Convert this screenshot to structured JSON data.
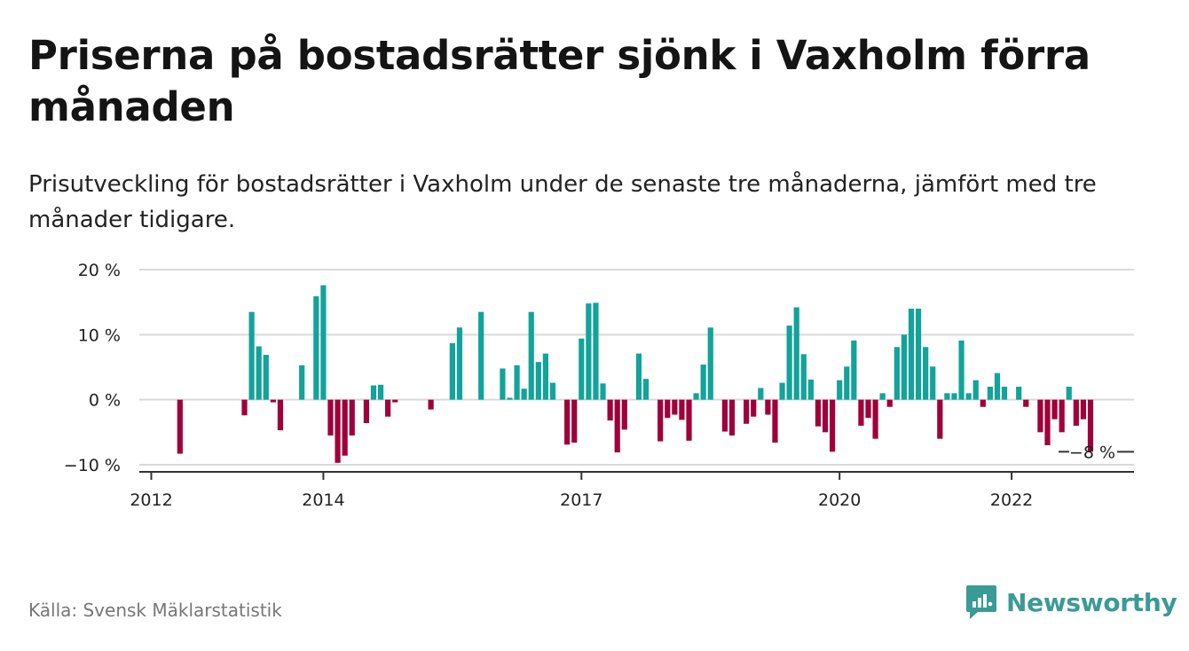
{
  "header": {
    "title": "Priserna på bostadsrätter sjönk i Vaxholm förra månaden",
    "subtitle": "Prisutveckling för bostadsrätter i Vaxholm under de senaste tre månaderna, jämfört med tre månader tidigare."
  },
  "footer": {
    "source": "Källa: Svensk Mäklarstatistik",
    "brand": "Newsworthy"
  },
  "colors": {
    "positive": "#12a39a",
    "negative": "#a0003a",
    "grid": "#d9d9d9",
    "axis": "#333333",
    "brand": "#3a9a96"
  },
  "chart_data": {
    "type": "bar",
    "title": "Priserna på bostadsrätter sjönk i Vaxholm förra månaden",
    "subtitle": "Prisutveckling för bostadsrätter i Vaxholm under de senaste tre månaderna, jämfört med tre månader tidigare.",
    "xlabel": "",
    "ylabel": "",
    "x_start": "2012-01",
    "x_end": "2022-12",
    "ylim": [
      -10,
      20
    ],
    "y_ticks": [
      {
        "value": 20,
        "label": "20 %"
      },
      {
        "value": 10,
        "label": "10 %"
      },
      {
        "value": 0,
        "label": "0 %"
      },
      {
        "value": -10,
        "label": "−10 %"
      }
    ],
    "x_ticks": [
      {
        "date": "2012-01",
        "label": "2012"
      },
      {
        "date": "2014-01",
        "label": "2014"
      },
      {
        "date": "2017-01",
        "label": "2017"
      },
      {
        "date": "2020-01",
        "label": "2020"
      },
      {
        "date": "2022-01",
        "label": "2022"
      }
    ],
    "grid": true,
    "last_value_label": "−8 %",
    "values": [
      {
        "date": "2012-05",
        "value": -8.3
      },
      {
        "date": "2013-02",
        "value": -2.4
      },
      {
        "date": "2013-03",
        "value": 13.5
      },
      {
        "date": "2013-04",
        "value": 8.2
      },
      {
        "date": "2013-05",
        "value": 6.9
      },
      {
        "date": "2013-06",
        "value": -0.4
      },
      {
        "date": "2013-07",
        "value": -4.7
      },
      {
        "date": "2013-10",
        "value": 5.3
      },
      {
        "date": "2013-12",
        "value": 15.9
      },
      {
        "date": "2014-01",
        "value": 17.6
      },
      {
        "date": "2014-02",
        "value": -5.5
      },
      {
        "date": "2014-03",
        "value": -9.7
      },
      {
        "date": "2014-04",
        "value": -8.6
      },
      {
        "date": "2014-05",
        "value": -5.5
      },
      {
        "date": "2014-07",
        "value": -3.6
      },
      {
        "date": "2014-08",
        "value": 2.2
      },
      {
        "date": "2014-09",
        "value": 2.3
      },
      {
        "date": "2014-10",
        "value": -2.6
      },
      {
        "date": "2014-11",
        "value": -0.4
      },
      {
        "date": "2015-04",
        "value": -1.5
      },
      {
        "date": "2015-07",
        "value": 8.7
      },
      {
        "date": "2015-08",
        "value": 11.1
      },
      {
        "date": "2015-11",
        "value": 13.5
      },
      {
        "date": "2016-02",
        "value": 4.8
      },
      {
        "date": "2016-03",
        "value": 0.3
      },
      {
        "date": "2016-04",
        "value": 5.3
      },
      {
        "date": "2016-05",
        "value": 1.7
      },
      {
        "date": "2016-06",
        "value": 13.5
      },
      {
        "date": "2016-07",
        "value": 5.8
      },
      {
        "date": "2016-08",
        "value": 7.1
      },
      {
        "date": "2016-09",
        "value": 2.6
      },
      {
        "date": "2016-11",
        "value": -6.9
      },
      {
        "date": "2016-12",
        "value": -6.6
      },
      {
        "date": "2017-01",
        "value": 9.4
      },
      {
        "date": "2017-02",
        "value": 14.8
      },
      {
        "date": "2017-03",
        "value": 14.9
      },
      {
        "date": "2017-04",
        "value": 2.5
      },
      {
        "date": "2017-05",
        "value": -3.2
      },
      {
        "date": "2017-06",
        "value": -8.1
      },
      {
        "date": "2017-07",
        "value": -4.6
      },
      {
        "date": "2017-09",
        "value": 7.1
      },
      {
        "date": "2017-10",
        "value": 3.2
      },
      {
        "date": "2017-12",
        "value": -6.4
      },
      {
        "date": "2018-01",
        "value": -2.8
      },
      {
        "date": "2018-02",
        "value": -2.3
      },
      {
        "date": "2018-03",
        "value": -3.1
      },
      {
        "date": "2018-04",
        "value": -6.3
      },
      {
        "date": "2018-05",
        "value": 1.0
      },
      {
        "date": "2018-06",
        "value": 5.4
      },
      {
        "date": "2018-07",
        "value": 11.1
      },
      {
        "date": "2018-09",
        "value": -4.9
      },
      {
        "date": "2018-10",
        "value": -5.5
      },
      {
        "date": "2018-12",
        "value": -3.7
      },
      {
        "date": "2019-01",
        "value": -2.6
      },
      {
        "date": "2019-02",
        "value": 1.8
      },
      {
        "date": "2019-03",
        "value": -2.3
      },
      {
        "date": "2019-04",
        "value": -6.6
      },
      {
        "date": "2019-05",
        "value": 2.6
      },
      {
        "date": "2019-06",
        "value": 11.4
      },
      {
        "date": "2019-07",
        "value": 14.2
      },
      {
        "date": "2019-08",
        "value": 7.0
      },
      {
        "date": "2019-09",
        "value": 3.1
      },
      {
        "date": "2019-10",
        "value": -4.1
      },
      {
        "date": "2019-11",
        "value": -5.0
      },
      {
        "date": "2019-12",
        "value": -8.0
      },
      {
        "date": "2020-01",
        "value": 3.0
      },
      {
        "date": "2020-02",
        "value": 5.1
      },
      {
        "date": "2020-03",
        "value": 9.1
      },
      {
        "date": "2020-04",
        "value": -4.0
      },
      {
        "date": "2020-05",
        "value": -2.8
      },
      {
        "date": "2020-06",
        "value": -6.0
      },
      {
        "date": "2020-07",
        "value": 1.0
      },
      {
        "date": "2020-08",
        "value": -1.1
      },
      {
        "date": "2020-09",
        "value": 8.1
      },
      {
        "date": "2020-10",
        "value": 10.0
      },
      {
        "date": "2020-11",
        "value": 14.0
      },
      {
        "date": "2020-12",
        "value": 14.0
      },
      {
        "date": "2021-01",
        "value": 8.1
      },
      {
        "date": "2021-02",
        "value": 5.1
      },
      {
        "date": "2021-03",
        "value": -6.0
      },
      {
        "date": "2021-04",
        "value": 1.0
      },
      {
        "date": "2021-05",
        "value": 1.0
      },
      {
        "date": "2021-06",
        "value": 9.1
      },
      {
        "date": "2021-07",
        "value": 1.0
      },
      {
        "date": "2021-08",
        "value": 3.0
      },
      {
        "date": "2021-09",
        "value": -1.1
      },
      {
        "date": "2021-10",
        "value": 2.0
      },
      {
        "date": "2021-11",
        "value": 4.1
      },
      {
        "date": "2021-12",
        "value": 2.0
      },
      {
        "date": "2022-02",
        "value": 2.0
      },
      {
        "date": "2022-03",
        "value": -1.1
      },
      {
        "date": "2022-05",
        "value": -5.0
      },
      {
        "date": "2022-06",
        "value": -7.0
      },
      {
        "date": "2022-07",
        "value": -3.0
      },
      {
        "date": "2022-08",
        "value": -5.0
      },
      {
        "date": "2022-09",
        "value": 2.0
      },
      {
        "date": "2022-10",
        "value": -4.0
      },
      {
        "date": "2022-11",
        "value": -3.0
      },
      {
        "date": "2022-12",
        "value": -8.0
      }
    ]
  }
}
